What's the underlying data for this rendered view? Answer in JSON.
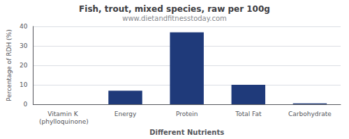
{
  "chart_data": {
    "type": "bar",
    "title": "Fish, trout, mixed species, raw per 100g",
    "subtitle": "www.dietandfitnesstoday.com",
    "xlabel": "Different Nutrients",
    "ylabel": "Percentage of RDH (%)",
    "categories": [
      "Vitamin K (phylloquinone)",
      "Energy",
      "Protein",
      "Total Fat",
      "Carbohydrate"
    ],
    "values": [
      0,
      7,
      37,
      10,
      0.5
    ],
    "color": "#1F3A7A",
    "ylim": [
      0,
      40
    ],
    "yticks": [
      0,
      10,
      20,
      30,
      40
    ],
    "grid": true
  }
}
